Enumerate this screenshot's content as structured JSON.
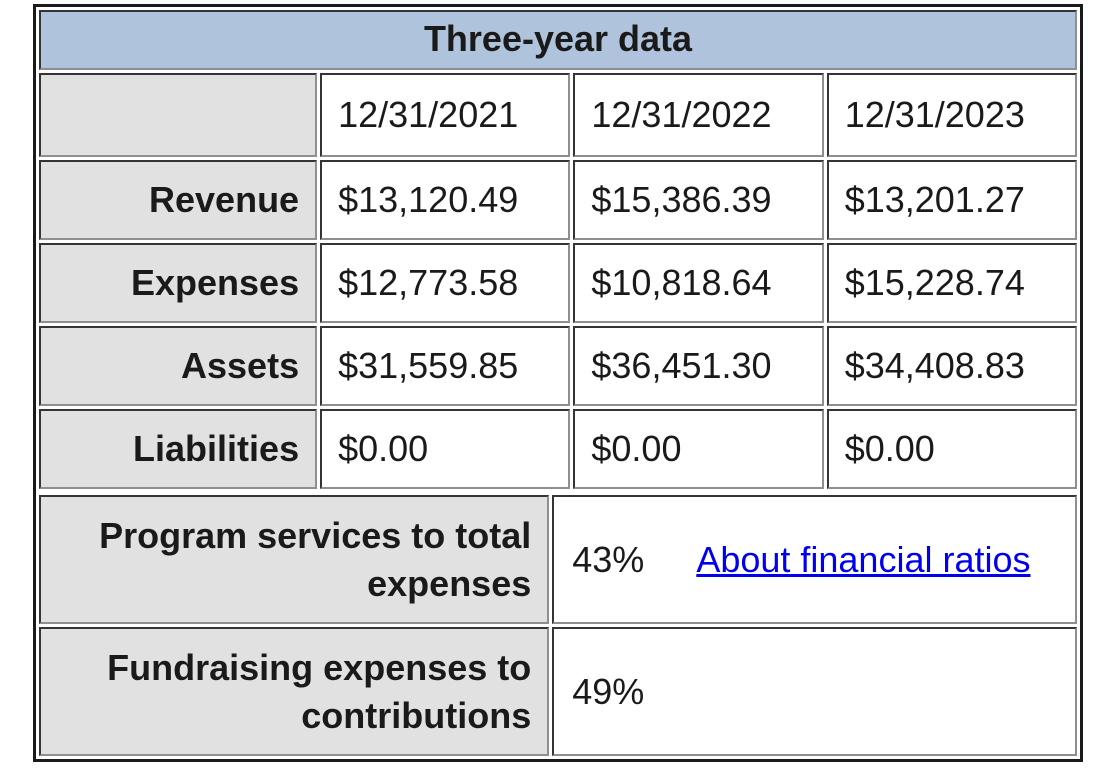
{
  "chart_data": {
    "type": "table",
    "title": "Three-year data",
    "columns": [
      "12/31/2021",
      "12/31/2022",
      "12/31/2023"
    ],
    "rows": [
      {
        "label": "Revenue",
        "values": [
          "$13,120.49",
          "$15,386.39",
          "$13,201.27"
        ]
      },
      {
        "label": "Expenses",
        "values": [
          "$12,773.58",
          "$10,818.64",
          "$15,228.74"
        ]
      },
      {
        "label": "Assets",
        "values": [
          "$31,559.85",
          "$36,451.30",
          "$34,408.83"
        ]
      },
      {
        "label": "Liabilities",
        "values": [
          "$0.00",
          "$0.00",
          "$0.00"
        ]
      }
    ],
    "ratios": [
      {
        "label": "Program services to total expenses",
        "value": "43%",
        "link_label": "About financial ratios"
      },
      {
        "label": "Fundraising expenses to contributions",
        "value": "49%"
      }
    ],
    "colors": {
      "title_bg": "#b0c3dc",
      "label_bg": "#e1e1e1",
      "link": "#0000ee",
      "border_dark": "#2e2e2e",
      "border_light": "#8f8f8f"
    }
  }
}
